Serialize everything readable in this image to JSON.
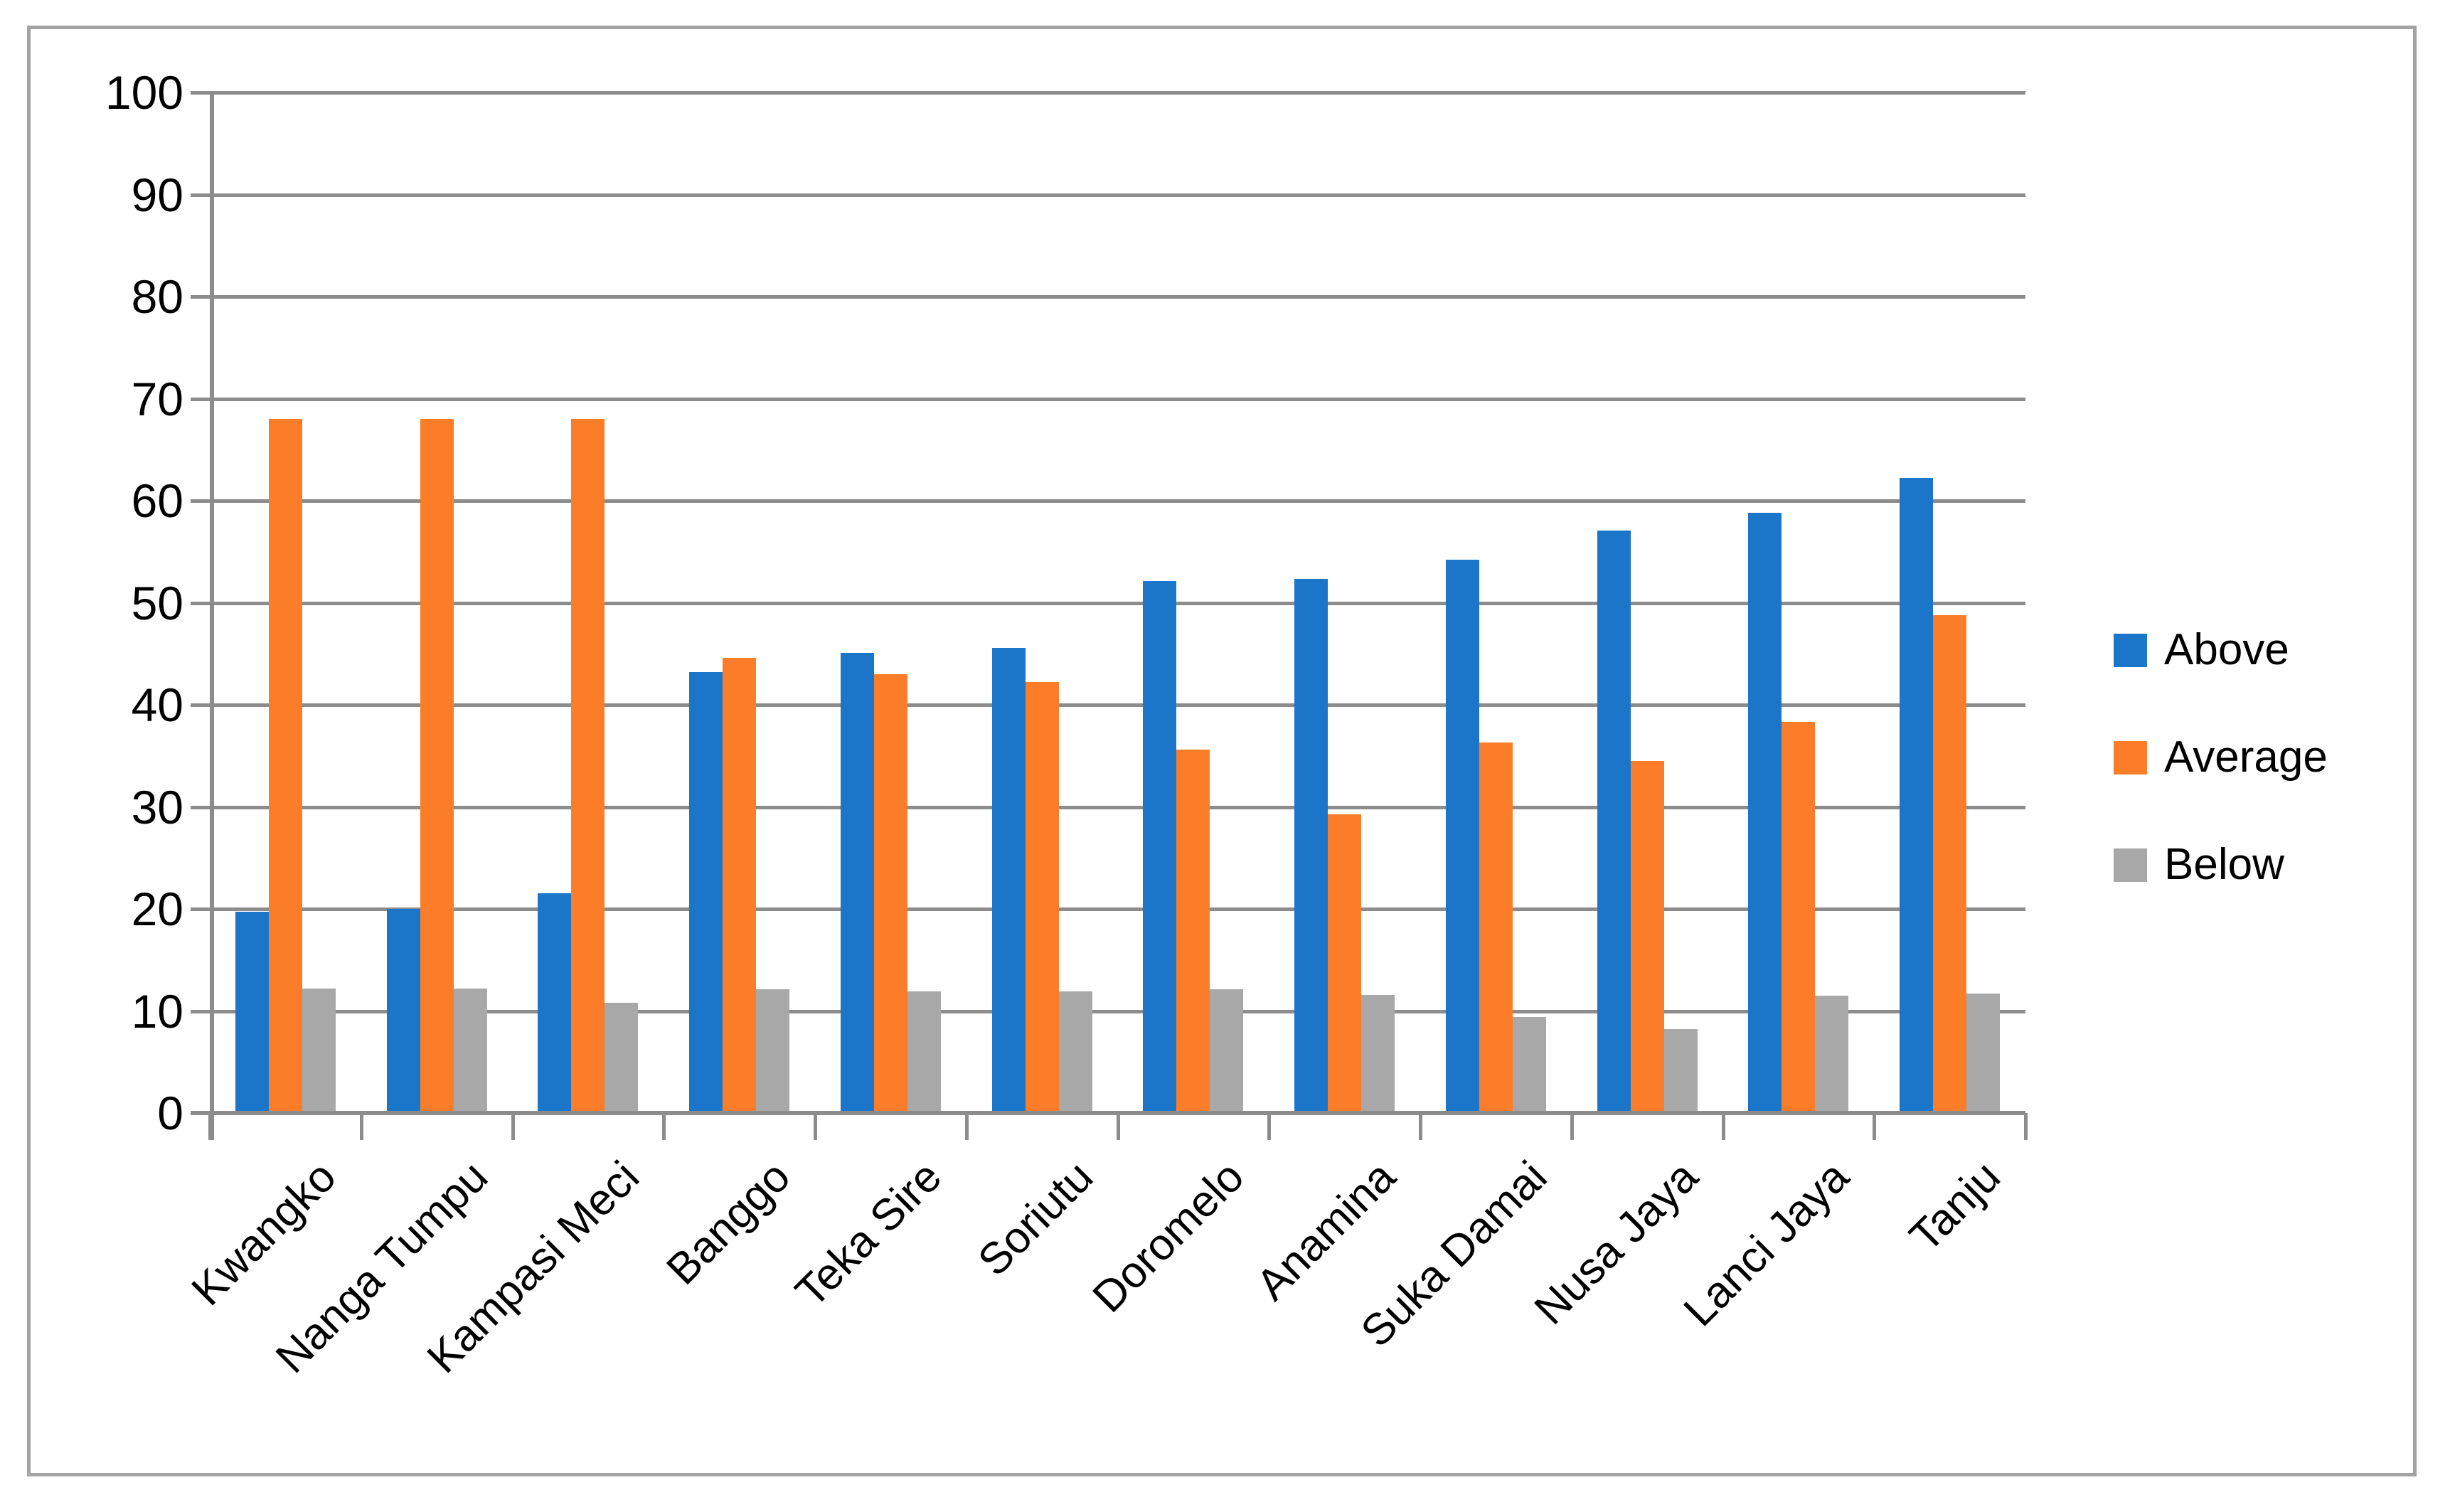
{
  "chart_data": {
    "type": "bar",
    "title": "",
    "xlabel": "",
    "ylabel": "",
    "categories": [
      "Kwangko",
      "Nanga Tumpu",
      "Kampasi Meci",
      "Banggo",
      "Teka Sire",
      "Soriutu",
      "Doromelo",
      "Anamina",
      "Suka Damai",
      "Nusa Jaya",
      "Lanci Jaya",
      "Tanju"
    ],
    "series": [
      {
        "name": "Above",
        "color": "#1b76c9",
        "values": [
          19.7,
          20.0,
          21.5,
          43.2,
          45.1,
          45.6,
          52.1,
          52.3,
          54.2,
          57.1,
          58.8,
          62.2
        ]
      },
      {
        "name": "Average",
        "color": "#fb7d29",
        "values": [
          68.0,
          68.0,
          68.0,
          44.6,
          43.0,
          42.2,
          35.6,
          29.3,
          36.3,
          34.5,
          38.3,
          48.8
        ]
      },
      {
        "name": "Below",
        "color": "#a8a8a8",
        "values": [
          12.2,
          12.2,
          10.8,
          12.1,
          11.9,
          11.9,
          12.1,
          11.6,
          9.4,
          8.2,
          11.5,
          11.7
        ]
      }
    ],
    "ylim": [
      0,
      100
    ],
    "ytick_step": 10,
    "ytick_labels": [
      "0",
      "10",
      "20",
      "30",
      "40",
      "50",
      "60",
      "70",
      "80",
      "90",
      "100"
    ],
    "grid": "horizontal",
    "legend_position": "right",
    "legend_entries": [
      "Above",
      "Average",
      "Below"
    ],
    "colors": {
      "above": "#1b76c9",
      "average": "#fb7d29",
      "below": "#a8a8a8",
      "gridline": "#8c8c8c",
      "frame_border": "#a3a3a3",
      "background": "#ffffff",
      "text": "#000000"
    }
  }
}
